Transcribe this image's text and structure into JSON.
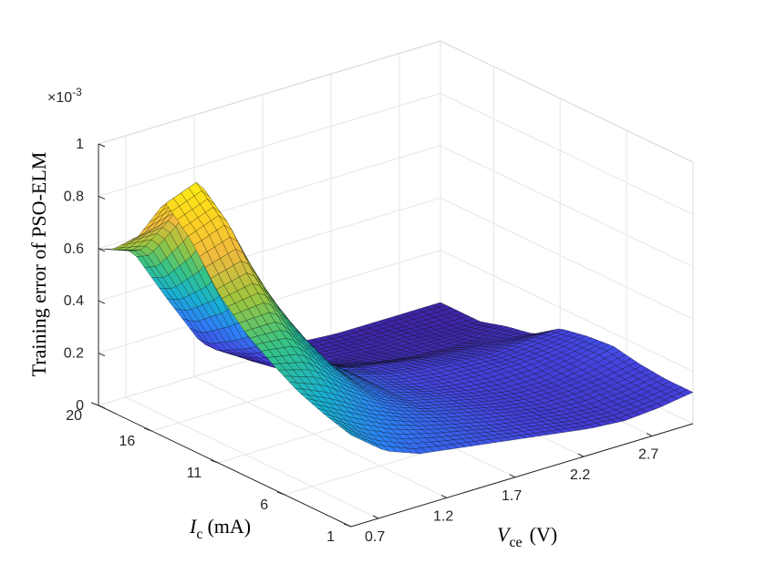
{
  "chart_data": {
    "type": "surface",
    "zlabel": "Training error of PSO-ELM",
    "xlabel": {
      "symbol": "V",
      "subscript": "ce",
      "unit": "(V)"
    },
    "ylabel": {
      "symbol": "I",
      "subscript": "c",
      "unit": "(mA)"
    },
    "z_multiplier": {
      "base": "×10",
      "exponent": "-3"
    },
    "xlim": [
      0.5,
      3.0
    ],
    "ylim": [
      1,
      20
    ],
    "zlim": [
      0,
      1
    ],
    "x_ticks": [
      "0.7",
      "1.2",
      "1.7",
      "2.2",
      "2.7"
    ],
    "x_tick_values": [
      0.7,
      1.2,
      1.7,
      2.2,
      2.7
    ],
    "y_ticks": [
      "1",
      "6",
      "11",
      "16",
      "20"
    ],
    "y_tick_values": [
      1,
      6,
      11,
      16,
      20
    ],
    "z_ticks": [
      "0",
      "0.2",
      "0.4",
      "0.6",
      "0.8",
      "1"
    ],
    "z_tick_values": [
      0,
      0.2,
      0.4,
      0.6,
      0.8,
      1
    ],
    "grid": true,
    "colormap": "parula",
    "colormap_stops": [
      "#3e26a8",
      "#4543e0",
      "#2d80f7",
      "#18b1d2",
      "#35c386",
      "#9fc53e",
      "#f1ba3f",
      "#fdd81e",
      "#f9fb15"
    ],
    "edge_color": "#000000",
    "x": [
      0.5,
      0.75,
      1.0,
      1.25,
      1.5,
      1.75,
      2.0,
      2.25,
      2.5,
      2.75,
      3.0
    ],
    "y": [
      1,
      3,
      5,
      7,
      9,
      11,
      13,
      15,
      17,
      19,
      20
    ],
    "z_units": "x1e-3",
    "z": [
      [
        0.35,
        0.25,
        0.2,
        0.18,
        0.16,
        0.14,
        0.12,
        0.1,
        0.09,
        0.1,
        0.12
      ],
      [
        0.38,
        0.3,
        0.24,
        0.2,
        0.17,
        0.14,
        0.12,
        0.1,
        0.09,
        0.1,
        0.12
      ],
      [
        0.42,
        0.36,
        0.28,
        0.22,
        0.18,
        0.15,
        0.12,
        0.1,
        0.1,
        0.11,
        0.13
      ],
      [
        0.48,
        0.45,
        0.34,
        0.24,
        0.18,
        0.15,
        0.12,
        0.1,
        0.1,
        0.12,
        0.15
      ],
      [
        0.55,
        0.55,
        0.4,
        0.26,
        0.18,
        0.14,
        0.12,
        0.11,
        0.11,
        0.12,
        0.14
      ],
      [
        0.65,
        0.68,
        0.48,
        0.28,
        0.18,
        0.14,
        0.12,
        0.11,
        0.1,
        0.11,
        0.12
      ],
      [
        0.8,
        0.85,
        0.55,
        0.28,
        0.16,
        0.12,
        0.1,
        0.08,
        0.07,
        0.06,
        0.05
      ],
      [
        0.9,
        0.95,
        0.6,
        0.25,
        0.12,
        0.08,
        0.05,
        0.03,
        0.02,
        0.02,
        0.03
      ],
      [
        0.72,
        0.75,
        0.45,
        0.18,
        0.06,
        0.03,
        0.02,
        0.01,
        0.01,
        0.0,
        0.0
      ],
      [
        0.62,
        0.58,
        0.35,
        0.12,
        0.04,
        0.02,
        0.01,
        0.0,
        0.0,
        0.0,
        0.0
      ],
      [
        0.6,
        0.55,
        0.33,
        0.12,
        0.04,
        0.02,
        0.01,
        0.0,
        0.0,
        0.0,
        0.0
      ]
    ]
  }
}
